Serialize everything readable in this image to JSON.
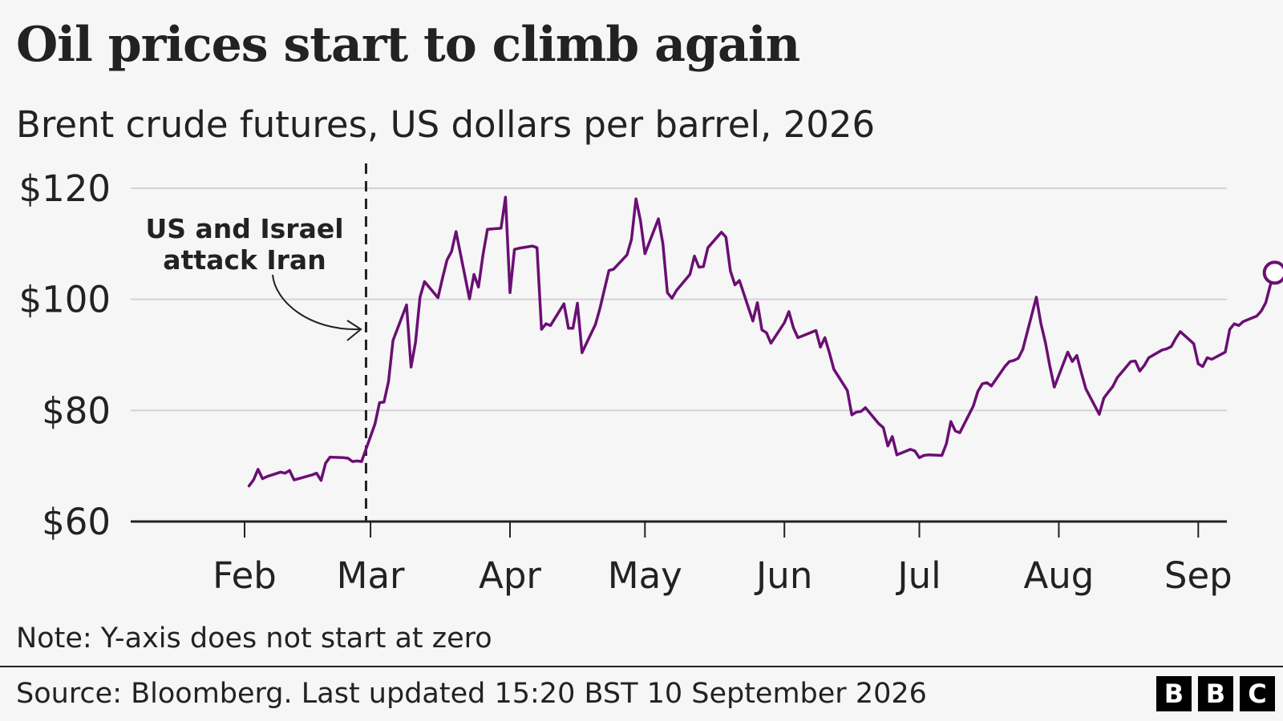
{
  "title": "Oil prices start to climb again",
  "subtitle": "Brent crude futures, US dollars per barrel, 2026",
  "note": "Note: Y-axis does not start at zero",
  "source": "Source: Bloomberg. Last updated 15:20 BST 10 September 2026",
  "logo": {
    "letters": [
      "B",
      "B",
      "C"
    ]
  },
  "colors": {
    "line": "#6a0f73",
    "grid": "#d3d3d3",
    "axis": "#222222",
    "background": "#f6f6f6"
  },
  "chart_data": {
    "type": "line",
    "title": "Oil prices start to climb again",
    "subtitle": "Brent crude futures, US dollars per barrel, 2026",
    "xlabel": "",
    "ylabel": "",
    "ylim": [
      60,
      120
    ],
    "y_ticks": [
      60,
      80,
      100,
      120
    ],
    "y_tick_labels": [
      "$60",
      "$80",
      "$100",
      "$120"
    ],
    "x_ticks": [
      "Feb",
      "Mar",
      "Apr",
      "May",
      "Jun",
      "Jul",
      "Aug",
      "Sep"
    ],
    "x_tick_dates": [
      "2026-02-01",
      "2026-03-01",
      "2026-04-01",
      "2026-05-01",
      "2026-06-01",
      "2026-07-01",
      "2026-08-01",
      "2026-09-01"
    ],
    "grid": "horizontal",
    "annotation": {
      "lines": [
        "US and Israel",
        "attack Iran"
      ],
      "date": "2026-02-28"
    },
    "end_marker": "hollow circle",
    "series": [
      {
        "name": "",
        "color": "#6a0f73",
        "points": [
          [
            "2026-02-02",
            66.4
          ],
          [
            "2026-02-03",
            67.5
          ],
          [
            "2026-02-04",
            69.4
          ],
          [
            "2026-02-05",
            67.7
          ],
          [
            "2026-02-06",
            68.1
          ],
          [
            "2026-02-09",
            68.9
          ],
          [
            "2026-02-10",
            68.7
          ],
          [
            "2026-02-11",
            69.2
          ],
          [
            "2026-02-12",
            67.5
          ],
          [
            "2026-02-13",
            67.7
          ],
          [
            "2026-02-16",
            68.4
          ],
          [
            "2026-02-17",
            68.7
          ],
          [
            "2026-02-18",
            67.4
          ],
          [
            "2026-02-19",
            70.5
          ],
          [
            "2026-02-20",
            71.6
          ],
          [
            "2026-02-23",
            71.5
          ],
          [
            "2026-02-24",
            71.4
          ],
          [
            "2026-02-25",
            70.8
          ],
          [
            "2026-02-26",
            70.9
          ],
          [
            "2026-02-27",
            70.8
          ],
          [
            "2026-03-02",
            77.6
          ],
          [
            "2026-03-03",
            81.4
          ],
          [
            "2026-03-04",
            81.5
          ],
          [
            "2026-03-05",
            85.2
          ],
          [
            "2026-03-06",
            92.6
          ],
          [
            "2026-03-09",
            99.0
          ],
          [
            "2026-03-10",
            87.8
          ],
          [
            "2026-03-11",
            92.3
          ],
          [
            "2026-03-12",
            100.4
          ],
          [
            "2026-03-13",
            103.2
          ],
          [
            "2026-03-16",
            100.3
          ],
          [
            "2026-03-17",
            103.8
          ],
          [
            "2026-03-18",
            107.1
          ],
          [
            "2026-03-19",
            108.6
          ],
          [
            "2026-03-20",
            112.2
          ],
          [
            "2026-03-23",
            100.1
          ],
          [
            "2026-03-24",
            104.5
          ],
          [
            "2026-03-25",
            102.2
          ],
          [
            "2026-03-26",
            108.0
          ],
          [
            "2026-03-27",
            112.6
          ],
          [
            "2026-03-30",
            112.8
          ],
          [
            "2026-03-31",
            118.4
          ],
          [
            "2026-04-01",
            101.2
          ],
          [
            "2026-04-02",
            109.0
          ],
          [
            "2026-04-03",
            109.2
          ],
          [
            "2026-04-06",
            109.6
          ],
          [
            "2026-04-07",
            109.3
          ],
          [
            "2026-04-08",
            94.6
          ],
          [
            "2026-04-09",
            95.6
          ],
          [
            "2026-04-10",
            95.3
          ],
          [
            "2026-04-13",
            99.2
          ],
          [
            "2026-04-14",
            94.8
          ],
          [
            "2026-04-15",
            94.8
          ],
          [
            "2026-04-16",
            99.3
          ],
          [
            "2026-04-17",
            90.4
          ],
          [
            "2026-04-20",
            95.5
          ],
          [
            "2026-04-21",
            98.4
          ],
          [
            "2026-04-22",
            101.8
          ],
          [
            "2026-04-23",
            105.2
          ],
          [
            "2026-04-24",
            105.4
          ],
          [
            "2026-04-27",
            108.0
          ],
          [
            "2026-04-28",
            110.8
          ],
          [
            "2026-04-29",
            118.1
          ],
          [
            "2026-04-30",
            114.2
          ],
          [
            "2026-05-01",
            108.2
          ],
          [
            "2026-05-04",
            114.5
          ],
          [
            "2026-05-05",
            110.0
          ],
          [
            "2026-05-06",
            101.2
          ],
          [
            "2026-05-07",
            100.2
          ],
          [
            "2026-05-08",
            101.6
          ],
          [
            "2026-05-11",
            104.5
          ],
          [
            "2026-05-12",
            107.8
          ],
          [
            "2026-05-13",
            105.8
          ],
          [
            "2026-05-14",
            105.9
          ],
          [
            "2026-05-15",
            109.3
          ],
          [
            "2026-05-18",
            112.1
          ],
          [
            "2026-05-19",
            111.2
          ],
          [
            "2026-05-20",
            105.1
          ],
          [
            "2026-05-21",
            102.6
          ],
          [
            "2026-05-22",
            103.4
          ],
          [
            "2026-05-25",
            96.1
          ],
          [
            "2026-05-26",
            99.4
          ],
          [
            "2026-05-27",
            94.5
          ],
          [
            "2026-05-28",
            94.0
          ],
          [
            "2026-05-29",
            92.1
          ],
          [
            "2026-06-01",
            95.8
          ],
          [
            "2026-06-02",
            97.8
          ],
          [
            "2026-06-03",
            94.9
          ],
          [
            "2026-06-04",
            93.1
          ],
          [
            "2026-06-05",
            93.4
          ],
          [
            "2026-06-08",
            94.4
          ],
          [
            "2026-06-09",
            91.4
          ],
          [
            "2026-06-10",
            93.1
          ],
          [
            "2026-06-11",
            90.4
          ],
          [
            "2026-06-12",
            87.4
          ],
          [
            "2026-06-15",
            83.6
          ],
          [
            "2026-06-16",
            79.2
          ],
          [
            "2026-06-17",
            79.7
          ],
          [
            "2026-06-18",
            79.8
          ],
          [
            "2026-06-19",
            80.5
          ],
          [
            "2026-06-22",
            77.6
          ],
          [
            "2026-06-23",
            76.9
          ],
          [
            "2026-06-24",
            73.6
          ],
          [
            "2026-06-25",
            75.3
          ],
          [
            "2026-06-26",
            72.0
          ],
          [
            "2026-06-29",
            73.0
          ],
          [
            "2026-06-30",
            72.7
          ],
          [
            "2026-07-01",
            71.5
          ],
          [
            "2026-07-02",
            71.9
          ],
          [
            "2026-07-03",
            72.0
          ],
          [
            "2026-07-06",
            71.9
          ],
          [
            "2026-07-07",
            74.0
          ],
          [
            "2026-07-08",
            78.0
          ],
          [
            "2026-07-09",
            76.3
          ],
          [
            "2026-07-10",
            76.0
          ],
          [
            "2026-07-13",
            80.8
          ],
          [
            "2026-07-14",
            83.4
          ],
          [
            "2026-07-15",
            84.8
          ],
          [
            "2026-07-16",
            85.0
          ],
          [
            "2026-07-17",
            84.4
          ],
          [
            "2026-07-20",
            87.9
          ],
          [
            "2026-07-21",
            88.8
          ],
          [
            "2026-07-22",
            89.0
          ],
          [
            "2026-07-23",
            89.4
          ],
          [
            "2026-07-24",
            91.0
          ],
          [
            "2026-07-27",
            100.4
          ],
          [
            "2026-07-28",
            95.7
          ],
          [
            "2026-07-29",
            92.3
          ],
          [
            "2026-07-30",
            88.0
          ],
          [
            "2026-07-31",
            84.2
          ],
          [
            "2026-08-03",
            90.5
          ],
          [
            "2026-08-04",
            88.8
          ],
          [
            "2026-08-05",
            89.9
          ],
          [
            "2026-08-06",
            86.8
          ],
          [
            "2026-08-07",
            83.9
          ],
          [
            "2026-08-10",
            79.3
          ],
          [
            "2026-08-11",
            82.2
          ],
          [
            "2026-08-12",
            83.3
          ],
          [
            "2026-08-13",
            84.3
          ],
          [
            "2026-08-14",
            85.9
          ],
          [
            "2026-08-17",
            88.8
          ],
          [
            "2026-08-18",
            88.9
          ],
          [
            "2026-08-19",
            87.1
          ],
          [
            "2026-08-20",
            88.1
          ],
          [
            "2026-08-21",
            89.5
          ],
          [
            "2026-08-24",
            90.9
          ],
          [
            "2026-08-25",
            91.1
          ],
          [
            "2026-08-26",
            91.5
          ],
          [
            "2026-08-27",
            93.0
          ],
          [
            "2026-08-28",
            94.2
          ],
          [
            "2026-08-31",
            92.0
          ],
          [
            "2026-09-01",
            88.4
          ],
          [
            "2026-09-02",
            87.9
          ],
          [
            "2026-09-03",
            89.5
          ],
          [
            "2026-09-04",
            89.2
          ],
          [
            "2026-09-07",
            90.5
          ],
          [
            "2026-09-08",
            94.6
          ],
          [
            "2026-09-09",
            95.6
          ],
          [
            "2026-09-10",
            95.3
          ],
          [
            "2026-09-11",
            96.0
          ],
          [
            "2026-09-14",
            97.0
          ],
          [
            "2026-09-15",
            97.9
          ],
          [
            "2026-09-16",
            99.4
          ],
          [
            "2026-09-17",
            102.5
          ],
          [
            "2026-09-18",
            104.8
          ]
        ]
      }
    ]
  }
}
